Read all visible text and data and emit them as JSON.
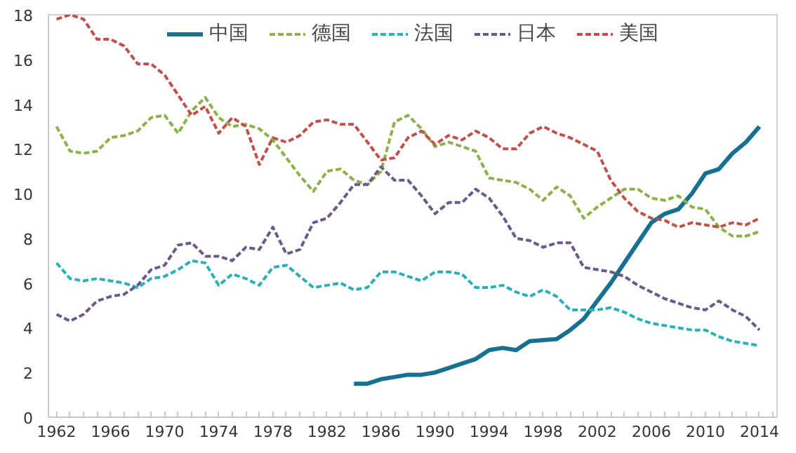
{
  "chart_data": {
    "type": "line",
    "x": [
      1962,
      1963,
      1964,
      1965,
      1966,
      1967,
      1968,
      1969,
      1970,
      1971,
      1972,
      1973,
      1974,
      1975,
      1976,
      1977,
      1978,
      1979,
      1980,
      1981,
      1982,
      1983,
      1984,
      1985,
      1986,
      1987,
      1988,
      1989,
      1990,
      1991,
      1992,
      1993,
      1994,
      1995,
      1996,
      1997,
      1998,
      1999,
      2000,
      2001,
      2002,
      2003,
      2004,
      2005,
      2006,
      2007,
      2008,
      2009,
      2010,
      2011,
      2012,
      2013,
      2014
    ],
    "series": [
      {
        "name": "中国",
        "color": "#17708f",
        "line_style": "solid",
        "values": [
          null,
          null,
          null,
          null,
          null,
          null,
          null,
          null,
          null,
          null,
          null,
          null,
          null,
          null,
          null,
          null,
          null,
          null,
          null,
          null,
          null,
          null,
          1.5,
          1.5,
          1.7,
          1.8,
          1.9,
          1.9,
          2.0,
          2.2,
          2.4,
          2.6,
          3.0,
          3.1,
          3.0,
          3.4,
          3.45,
          3.5,
          3.9,
          4.4,
          5.2,
          6.0,
          6.9,
          7.8,
          8.7,
          9.1,
          9.3,
          10.0,
          10.9,
          11.1,
          11.8,
          12.3,
          13.0
        ]
      },
      {
        "name": "德国",
        "color": "#8db04a",
        "line_style": "dashed",
        "values": [
          13.0,
          11.9,
          11.8,
          11.9,
          12.5,
          12.6,
          12.8,
          13.4,
          13.5,
          12.7,
          13.7,
          14.3,
          13.4,
          13.0,
          13.1,
          12.9,
          12.4,
          11.6,
          10.8,
          10.1,
          11.0,
          11.1,
          10.6,
          10.4,
          11.0,
          13.2,
          13.5,
          12.9,
          12.1,
          12.3,
          12.1,
          11.9,
          10.7,
          10.6,
          10.5,
          10.2,
          9.7,
          10.3,
          9.9,
          8.9,
          9.4,
          9.8,
          10.2,
          10.2,
          9.8,
          9.7,
          9.9,
          9.4,
          9.3,
          8.5,
          8.1,
          8.1,
          8.3
        ]
      },
      {
        "name": "法国",
        "color": "#2bb0b8",
        "line_style": "dashed",
        "values": [
          6.9,
          6.2,
          6.1,
          6.2,
          6.1,
          6.0,
          5.8,
          6.2,
          6.3,
          6.6,
          7.0,
          6.9,
          5.9,
          6.4,
          6.2,
          5.9,
          6.7,
          6.8,
          6.3,
          5.8,
          5.9,
          6.0,
          5.7,
          5.8,
          6.5,
          6.5,
          6.3,
          6.1,
          6.5,
          6.5,
          6.4,
          5.8,
          5.8,
          5.9,
          5.6,
          5.4,
          5.7,
          5.4,
          4.8,
          4.8,
          4.8,
          4.9,
          4.7,
          4.4,
          4.2,
          4.1,
          4.0,
          3.9,
          3.9,
          3.6,
          3.4,
          3.3,
          3.2
        ]
      },
      {
        "name": "日本",
        "color": "#6a5a8a",
        "line_style": "dashed",
        "values": [
          4.6,
          4.3,
          4.6,
          5.2,
          5.4,
          5.5,
          5.9,
          6.6,
          6.8,
          7.7,
          7.8,
          7.2,
          7.2,
          7.0,
          7.6,
          7.5,
          8.5,
          7.3,
          7.5,
          8.7,
          8.9,
          9.6,
          10.4,
          10.4,
          11.2,
          10.6,
          10.6,
          9.9,
          9.1,
          9.6,
          9.6,
          10.2,
          9.8,
          9.0,
          8.0,
          7.9,
          7.6,
          7.8,
          7.8,
          6.7,
          6.6,
          6.5,
          6.3,
          5.9,
          5.6,
          5.3,
          5.1,
          4.9,
          4.8,
          5.2,
          4.8,
          4.5,
          3.9
        ]
      },
      {
        "name": "美国",
        "color": "#c0504d",
        "line_style": "dashed",
        "values": [
          17.8,
          18.0,
          17.8,
          16.9,
          16.9,
          16.6,
          15.8,
          15.8,
          15.3,
          14.4,
          13.5,
          13.9,
          12.7,
          13.4,
          13.0,
          11.3,
          12.5,
          12.3,
          12.6,
          13.2,
          13.3,
          13.1,
          13.1,
          12.3,
          11.5,
          11.6,
          12.5,
          12.8,
          12.2,
          12.6,
          12.4,
          12.8,
          12.5,
          12.0,
          12.0,
          12.7,
          13.0,
          12.7,
          12.5,
          12.2,
          11.9,
          10.6,
          9.8,
          9.2,
          8.9,
          8.8,
          8.5,
          8.7,
          8.6,
          8.5,
          8.7,
          8.6,
          8.9
        ]
      }
    ],
    "xlim": [
      1961.4,
      2015.3
    ],
    "ylim": [
      0,
      18
    ],
    "xticks": [
      1962,
      1966,
      1970,
      1974,
      1978,
      1982,
      1986,
      1990,
      1994,
      1998,
      2002,
      2006,
      2010,
      2014
    ],
    "yticks": [
      0,
      2,
      4,
      6,
      8,
      10,
      12,
      14,
      16,
      18
    ],
    "grid": false,
    "legend": "top",
    "marker": "none"
  }
}
